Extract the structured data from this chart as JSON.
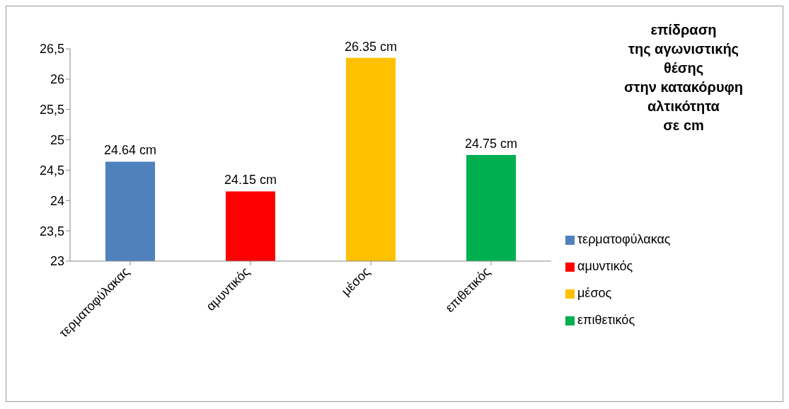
{
  "chart_data": {
    "type": "bar",
    "title": "επίδραση\nτης αγωνιστικής\nθέσης\nστην κατακόρυφη\nαλτικότητα\nσε cm",
    "categories": [
      "τερματοφύλακας",
      "αμυντικός",
      "μέσος",
      "επιθετικός"
    ],
    "series": [
      {
        "name": "τερματοφύλακας",
        "color": "#4f81bd",
        "values": [
          24.64,
          null,
          null,
          null
        ],
        "value_labels": [
          "24.64 cm",
          null,
          null,
          null
        ]
      },
      {
        "name": "αμυντικός",
        "color": "#ff0000",
        "values": [
          null,
          24.15,
          null,
          null
        ],
        "value_labels": [
          null,
          "24.15 cm",
          null,
          null
        ]
      },
      {
        "name": "μέσος",
        "color": "#ffc000",
        "values": [
          null,
          null,
          26.35,
          null
        ],
        "value_labels": [
          null,
          null,
          "26.35 cm",
          null
        ]
      },
      {
        "name": "επιθετικός",
        "color": "#00b050",
        "values": [
          null,
          null,
          null,
          24.75
        ],
        "value_labels": [
          null,
          null,
          null,
          "24.75 cm"
        ]
      }
    ],
    "ylim": [
      23,
      26.5
    ],
    "yticks": [
      23,
      {
        "value": 23.5,
        "label": "23,5"
      },
      24,
      {
        "value": 24.5,
        "label": "24,5"
      },
      25,
      {
        "value": 25.5,
        "label": "25,5"
      },
      26,
      {
        "value": 26.5,
        "label": "26,5"
      }
    ],
    "legend": "right"
  }
}
